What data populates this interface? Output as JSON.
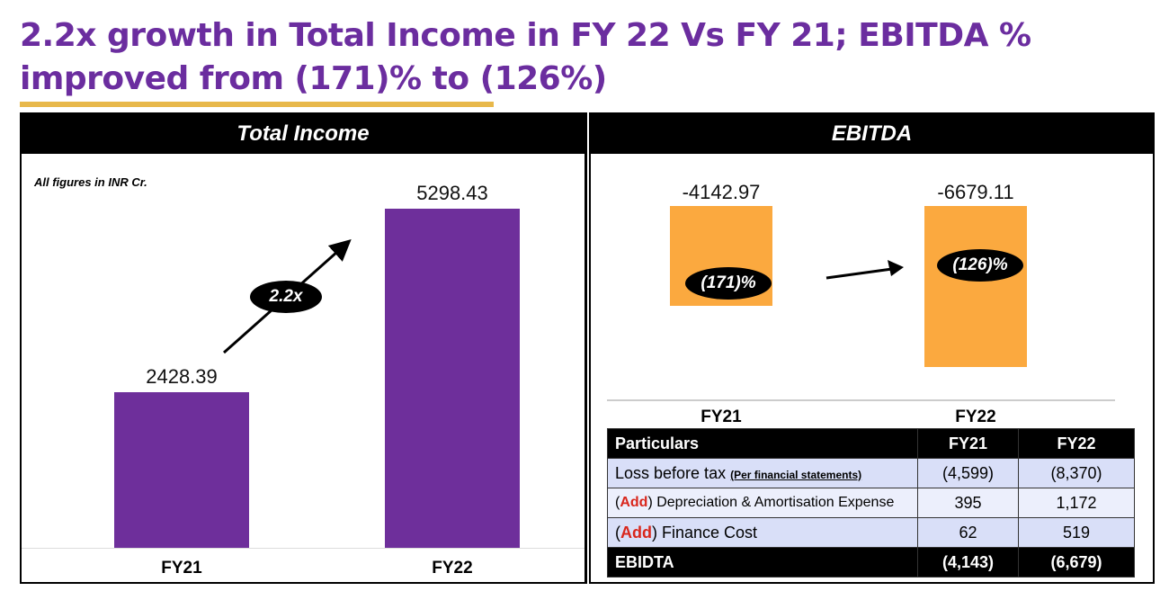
{
  "title": "2.2x growth in Total Income in FY 22 Vs FY 21; EBITDA % improved from (171)% to (126%)",
  "colors": {
    "title": "#6b2d9f",
    "underline": "#e8b84a",
    "income_bar": "#6e2f9b",
    "ebitda_bar": "#fba93f",
    "add": "#d9261c"
  },
  "chart_data": [
    {
      "type": "bar",
      "title": "Total Income",
      "note": "All figures in INR Cr.",
      "categories": [
        "FY21",
        "FY22"
      ],
      "values": [
        2428.39,
        5298.43
      ],
      "labels": [
        "2428.39",
        "5298.43"
      ],
      "annotation": "2.2x",
      "grid": false
    },
    {
      "type": "bar",
      "title": "EBITDA",
      "categories": [
        "FY21",
        "FY22"
      ],
      "values": [
        -4142.97,
        -6679.11
      ],
      "labels": [
        "-4142.97",
        "-6679.11"
      ],
      "percent_labels": [
        "(171)%",
        "(126)%"
      ],
      "grid": false
    }
  ],
  "table": {
    "headers": [
      "Particulars",
      "FY21",
      "FY22"
    ],
    "rows": [
      {
        "prefix_open": "(",
        "add": "Add",
        "prefix_close": ")",
        "label": "Loss before tax",
        "note": "(Per financial statements)",
        "fy21": "(4,599)",
        "fy22": "(8,370)"
      },
      {
        "prefix_open": "(",
        "add": "Add",
        "prefix_close": ")",
        "label": " Depreciation & Amortisation Expense",
        "fy21": "395",
        "fy22": "1,172"
      },
      {
        "prefix_open": "(",
        "add": "Add",
        "prefix_close": ")",
        "label": " Finance Cost",
        "fy21": "62",
        "fy22": "519"
      }
    ],
    "total": {
      "label": "EBIDTA",
      "fy21": "(4,143)",
      "fy22": "(6,679)"
    }
  }
}
